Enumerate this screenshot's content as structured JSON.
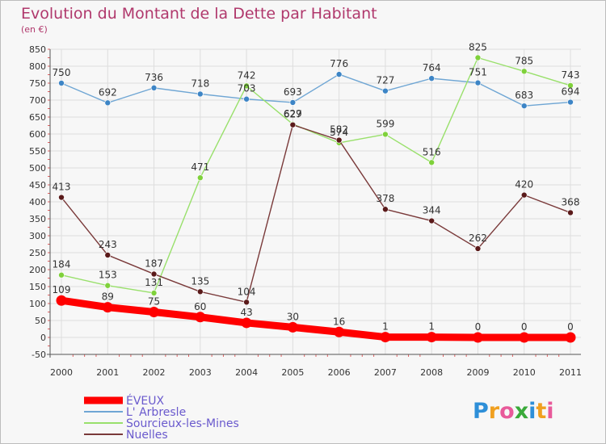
{
  "chart_data": {
    "type": "line",
    "title": "Evolution du Montant de la Dette par Habitant",
    "unit_label": "(en €)",
    "categories": [
      "2000",
      "2001",
      "2002",
      "2003",
      "2004",
      "2005",
      "2006",
      "2007",
      "2008",
      "2009",
      "2010",
      "2011"
    ],
    "ylim": [
      -50,
      850
    ],
    "yticks": [
      -50,
      0,
      50,
      100,
      150,
      200,
      250,
      300,
      350,
      400,
      450,
      500,
      550,
      600,
      650,
      700,
      750,
      800,
      850
    ],
    "grid": true,
    "legend_position": "bottom-left",
    "series": [
      {
        "name": "ÉVEUX",
        "color": "#ff0000",
        "marker": "#ff0000",
        "values": [
          109,
          89,
          75,
          60,
          43,
          30,
          16,
          1,
          1,
          0,
          0,
          0
        ],
        "labels": [
          "109",
          "89",
          "75",
          "60",
          "43",
          "30",
          "16",
          "1",
          "1",
          "0",
          "0",
          "0"
        ]
      },
      {
        "name": "L' Arbresle",
        "color": "#6fa6d4",
        "marker": "#3d85c6",
        "values": [
          750,
          692,
          736,
          718,
          703,
          693,
          776,
          727,
          764,
          751,
          683,
          694
        ],
        "labels": [
          "750",
          "692",
          "736",
          "718",
          "703",
          "693",
          "776",
          "727",
          "764",
          "751",
          "683",
          "694"
        ]
      },
      {
        "name": "Sourcieux-les-Mines",
        "color": "#99e06b",
        "marker": "#7fd13b",
        "values": [
          184,
          153,
          131,
          471,
          742,
          629,
          574,
          599,
          516,
          825,
          785,
          743
        ],
        "labels": [
          "184",
          "153",
          "131",
          "471",
          "742",
          "629",
          "574",
          "599",
          "516",
          "825",
          "785",
          "743"
        ]
      },
      {
        "name": "Nuelles",
        "color": "#7a3a3a",
        "marker": "#5a1a1a",
        "values": [
          413,
          243,
          187,
          135,
          104,
          627,
          582,
          378,
          344,
          262,
          420,
          368
        ],
        "labels": [
          "413",
          "243",
          "187",
          "135",
          "104",
          "627",
          "582",
          "378",
          "344",
          "262",
          "420",
          "368"
        ]
      }
    ]
  },
  "logo": {
    "text": "Proxiti"
  },
  "colors": {
    "title": "#b0386c",
    "grid": "#dddddd",
    "legend_text": "#6a5acd",
    "background": "#f7f7f7"
  }
}
